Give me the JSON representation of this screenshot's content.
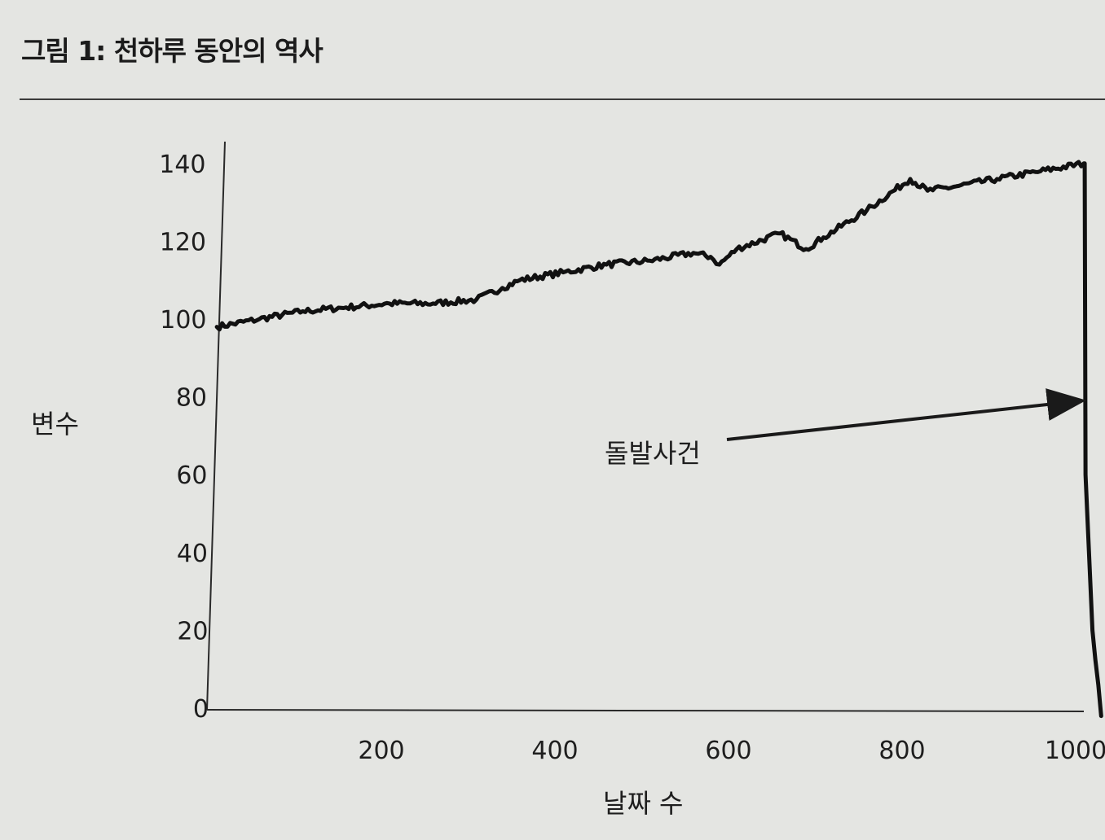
{
  "figure": {
    "title": "그림 1: 천하루 동안의 역사"
  },
  "chart_data": {
    "type": "line",
    "xlabel": "날짜 수",
    "ylabel": "변수",
    "xlim": [
      0,
      1100
    ],
    "ylim": [
      0,
      145
    ],
    "xticks": [
      200,
      400,
      600,
      800,
      1000
    ],
    "yticks": [
      0,
      20,
      40,
      60,
      80,
      100,
      120,
      140
    ],
    "grid": false,
    "annotation": {
      "text": "돌발사건",
      "points_to": [
        1001,
        80
      ]
    },
    "series": [
      {
        "x": [
          1,
          50,
          100,
          150,
          200,
          250,
          300,
          330,
          350,
          400,
          450,
          500,
          550,
          570,
          580,
          600,
          650,
          680,
          700,
          750,
          800,
          820,
          850,
          900,
          950,
          1000,
          1001,
          1002,
          1010,
          1020
        ],
        "y": [
          98,
          100,
          102,
          103,
          104,
          104,
          105,
          108,
          110,
          112,
          114,
          115,
          117,
          116,
          114,
          118,
          122,
          118,
          121,
          128,
          136,
          133,
          134,
          136,
          138,
          140,
          140,
          60,
          20,
          -2
        ]
      }
    ]
  },
  "colors": {
    "paper": "#e4e5e2",
    "ink": "#1a1a1a"
  }
}
